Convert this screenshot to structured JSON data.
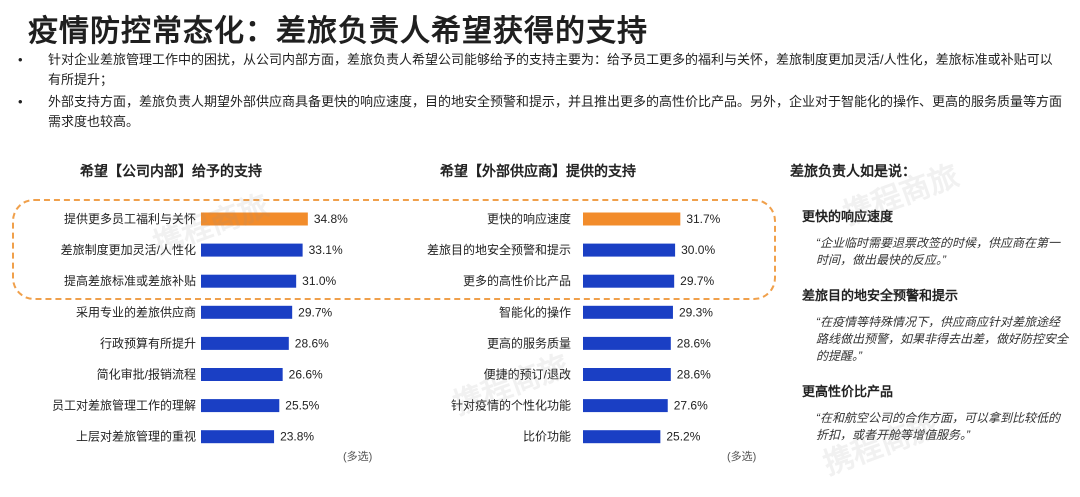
{
  "title": "疫情防控常态化：差旅负责人希望获得的支持",
  "bullets": [
    "针对企业差旅管理工作中的困扰，从公司内部方面，差旅负责人希望公司能够给予的支持主要为：给予员工更多的福利与关怀，差旅制度更加灵活/人性化，差旅标准或补贴可以有所提升；",
    "外部支持方面，差旅负责人期望外部供应商具备更快的响应速度，目的地安全预警和提示，并且推出更多的高性价比产品。另外，企业对于智能化的操作、更高的服务质量等方面需求度也较高。"
  ],
  "bullet_marker": "•",
  "colors": {
    "highlight": "#f28c2b",
    "normal": "#1a3fc4",
    "box": "#f0a04b"
  },
  "chart_data": [
    {
      "type": "bar",
      "orientation": "horizontal",
      "title": "希望【公司内部】给予的支持",
      "note": "(多选)",
      "categories": [
        "提供更多员工福利与关怀",
        "差旅制度更加灵活/人性化",
        "提高差旅标准或差旅补贴",
        "采用专业的差旅供应商",
        "行政预算有所提升",
        "简化审批/报销流程",
        "员工对差旅管理工作的理解",
        "上层对差旅管理的重视"
      ],
      "values": [
        34.8,
        33.1,
        31.0,
        29.7,
        28.6,
        26.6,
        25.5,
        23.8
      ],
      "labels": [
        "34.8%",
        "33.1%",
        "31.0%",
        "29.7%",
        "28.6%",
        "26.6%",
        "25.5%",
        "23.8%"
      ],
      "highlighted": [
        true,
        false,
        false,
        false,
        false,
        false,
        false,
        false
      ]
    },
    {
      "type": "bar",
      "orientation": "horizontal",
      "title": "希望【外部供应商】提供的支持",
      "note": "(多选)",
      "categories": [
        "更快的响应速度",
        "差旅目的地安全预警和提示",
        "更多的高性价比产品",
        "智能化的操作",
        "更高的服务质量",
        "便捷的预订/退改",
        "针对疫情的个性化功能",
        "比价功能"
      ],
      "values": [
        31.7,
        30.0,
        29.7,
        29.3,
        28.6,
        28.6,
        27.6,
        25.2
      ],
      "labels": [
        "31.7%",
        "30.0%",
        "29.7%",
        "29.3%",
        "28.6%",
        "28.6%",
        "27.6%",
        "25.2%"
      ],
      "highlighted": [
        true,
        false,
        false,
        false,
        false,
        false,
        false,
        false
      ]
    }
  ],
  "quotes": {
    "title": "差旅负责人如是说：",
    "items": [
      {
        "heading": "更快的响应速度",
        "text": "“企业临时需要退票改签的时候，供应商在第一时间，做出最快的反应。”"
      },
      {
        "heading": "差旅目的地安全预警和提示",
        "text": "“在疫情等特殊情况下，供应商应针对差旅途经路线做出预警，如果非得去出差，做好防控安全的提醒。”"
      },
      {
        "heading": "更高性价比产品",
        "text": "“在和航空公司的合作方面，可以拿到比较低的折扣，或者开舱等增值服务。”"
      }
    ]
  },
  "watermark": "携程商旅"
}
